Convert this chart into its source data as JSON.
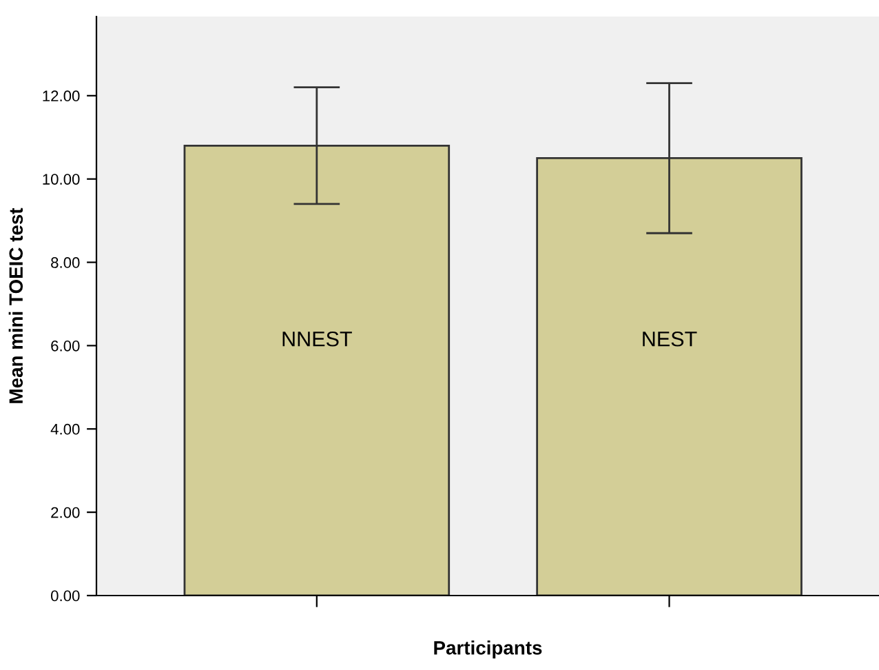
{
  "chart_data": {
    "type": "bar",
    "xlabel": "Participants",
    "ylabel": "Mean mini TOEIC test",
    "categories": [
      "NNEST",
      "NEST"
    ],
    "values": [
      10.8,
      10.5
    ],
    "errors": [
      [
        9.4,
        12.2
      ],
      [
        8.7,
        12.3
      ]
    ],
    "color": "#d3ce97",
    "ylim": [
      0,
      13.9
    ],
    "yticks": [
      {
        "value": 0,
        "label": "0.00"
      },
      {
        "value": 2,
        "label": "2.00"
      },
      {
        "value": 4,
        "label": "4.00"
      },
      {
        "value": 6,
        "label": "6.00"
      },
      {
        "value": 8,
        "label": "8.00"
      },
      {
        "value": 10,
        "label": "10.00"
      },
      {
        "value": 12,
        "label": "12.00"
      }
    ],
    "grid": false,
    "legend": false
  }
}
